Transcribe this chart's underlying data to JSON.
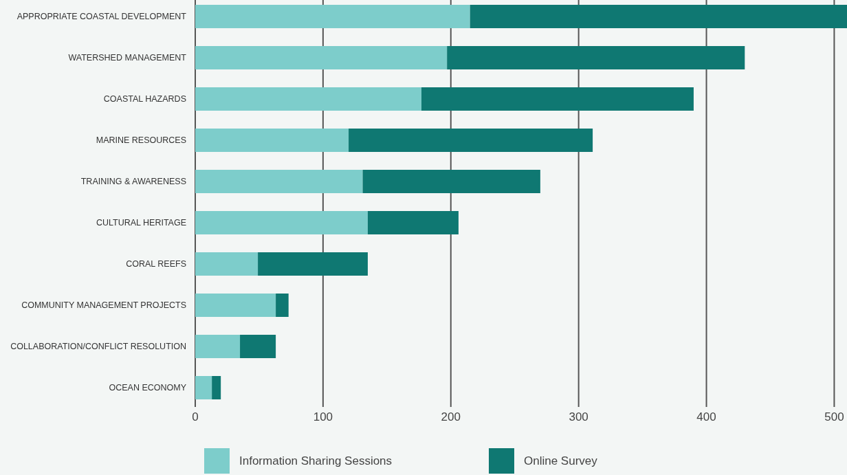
{
  "chart_data": {
    "type": "bar",
    "orientation": "horizontal",
    "stacked": true,
    "categories": [
      "APPROPRIATE COASTAL DEVELOPMENT",
      "WATERSHED MANAGEMENT",
      "COASTAL HAZARDS",
      "MARINE RESOURCES",
      "TRAINING & AWARENESS",
      "CULTURAL HERITAGE",
      "CORAL REEFS",
      "COMMUNITY MANAGEMENT PROJECTS",
      "COLLABORATION/CONFLICT RESOLUTION",
      "OCEAN ECONOMY"
    ],
    "series": [
      {
        "name": "Information Sharing Sessions",
        "color": "#7dcdcb",
        "values": [
          215,
          197,
          177,
          120,
          131,
          135,
          49,
          63,
          35,
          13
        ]
      },
      {
        "name": "Online Survey",
        "color": "#0f7872",
        "values": [
          295,
          233,
          213,
          191,
          139,
          71,
          86,
          10,
          28,
          7
        ]
      }
    ],
    "xlim": [
      0,
      510
    ],
    "xticks": [
      0,
      100,
      200,
      300,
      400,
      500
    ],
    "grid": "x",
    "legend": "bottom"
  }
}
